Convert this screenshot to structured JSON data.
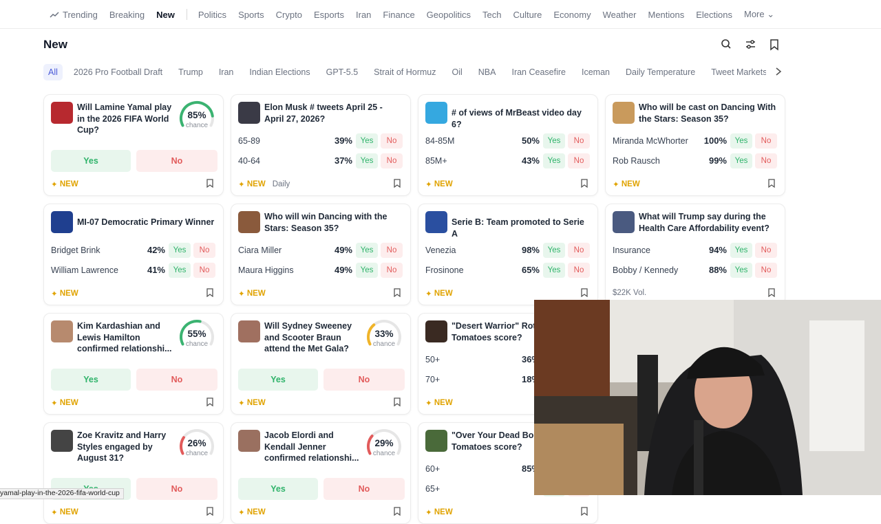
{
  "nav": {
    "items": [
      "Trending",
      "Breaking",
      "New",
      "Politics",
      "Sports",
      "Crypto",
      "Esports",
      "Iran",
      "Finance",
      "Geopolitics",
      "Tech",
      "Culture",
      "Economy",
      "Weather",
      "Mentions",
      "Elections",
      "More"
    ],
    "active": "New"
  },
  "header": {
    "title": "New"
  },
  "filters": [
    "All",
    "2026 Pro Football Draft",
    "Trump",
    "Iran",
    "Indian Elections",
    "GPT-5.5",
    "Strait of Hormuz",
    "Oil",
    "NBA",
    "Iran Ceasefire",
    "Iceman",
    "Daily Temperature",
    "Tweet Markets"
  ],
  "buttons": {
    "yes": "Yes",
    "no": "No",
    "chance": "chance",
    "new": "NEW"
  },
  "cards": [
    {
      "title": "Will Lamine Yamal play in the 2026 FIFA World Cup?",
      "chance": "85%",
      "gauge_color": "#3bb371",
      "icon_color": "#b7292f",
      "footer": {
        "new": true
      }
    },
    {
      "title": "Elon Musk # tweets April 25 - April 27, 2026?",
      "outcomes": [
        {
          "name": "65-89",
          "pct": "39%"
        },
        {
          "name": "40-64",
          "pct": "37%"
        }
      ],
      "icon_color": "#3a3a46",
      "footer": {
        "new": true,
        "extra": "Daily"
      }
    },
    {
      "title": "# of views of MrBeast video day 6?",
      "outcomes": [
        {
          "name": "84-85M",
          "pct": "50%"
        },
        {
          "name": "85M+",
          "pct": "43%"
        }
      ],
      "icon_color": "#35a8e0",
      "footer": {
        "new": true
      }
    },
    {
      "title": "Who will be cast on Dancing With the Stars: Season 35?",
      "outcomes": [
        {
          "name": "Miranda McWhorter",
          "pct": "100%"
        },
        {
          "name": "Rob Rausch",
          "pct": "99%"
        }
      ],
      "icon_color": "#c99a5c",
      "footer": {
        "new": true
      }
    },
    {
      "title": "MI-07 Democratic Primary Winner",
      "outcomes": [
        {
          "name": "Bridget Brink",
          "pct": "42%"
        },
        {
          "name": "William Lawrence",
          "pct": "41%"
        }
      ],
      "icon_color": "#1f3f8f",
      "footer": {
        "new": true
      }
    },
    {
      "title": "Who will win Dancing with the Stars: Season 35?",
      "outcomes": [
        {
          "name": "Ciara Miller",
          "pct": "49%"
        },
        {
          "name": "Maura Higgins",
          "pct": "49%"
        }
      ],
      "icon_color": "#8a5a3c",
      "footer": {
        "new": true
      }
    },
    {
      "title": "Serie B: Team promoted to Serie A",
      "outcomes": [
        {
          "name": "Venezia",
          "pct": "98%"
        },
        {
          "name": "Frosinone",
          "pct": "65%"
        }
      ],
      "icon_color": "#2a4fa0",
      "footer": {
        "new": true
      }
    },
    {
      "title": "What will Trump say during the Health Care Affordability event?",
      "outcomes": [
        {
          "name": "Insurance",
          "pct": "94%"
        },
        {
          "name": "Bobby / Kennedy",
          "pct": "88%"
        }
      ],
      "icon_color": "#4a5a80",
      "footer": {
        "vol": "$22K Vol."
      }
    },
    {
      "title": "Kim Kardashian and Lewis Hamilton confirmed relationshi...",
      "chance": "55%",
      "gauge_color": "#3bb371",
      "icon_color": "#b78a6e",
      "footer": {
        "new": true
      }
    },
    {
      "title": "Will Sydney Sweeney and Scooter Braun attend the Met Gala?",
      "chance": "33%",
      "gauge_color": "#f0b429",
      "icon_color": "#a07060",
      "footer": {
        "new": true
      }
    },
    {
      "title": "\"Desert Warrior\" Rotten Tomatoes score?",
      "outcomes": [
        {
          "name": "50+",
          "pct": "36%"
        },
        {
          "name": "70+",
          "pct": "18%"
        }
      ],
      "icon_color": "#3a2a22",
      "footer": {
        "new": true
      }
    },
    {
      "title": "Zoe Kravitz and Harry Styles engaged by August 31?",
      "chance": "26%",
      "gauge_color": "#e25b5b",
      "icon_color": "#444",
      "footer": {
        "new": true
      }
    },
    {
      "title": "Jacob Elordi and Kendall Jenner confirmed relationshi...",
      "chance": "29%",
      "gauge_color": "#e25b5b",
      "icon_color": "#9a7060",
      "footer": {
        "new": true
      }
    },
    {
      "title": "\"Over Your Dead Body\" Rotten Tomatoes score?",
      "outcomes": [
        {
          "name": "60+",
          "pct": "85%"
        },
        {
          "name": "65+"
        }
      ],
      "icon_color": "#4a6a3a",
      "footer": {
        "new": true
      }
    }
  ],
  "status_url": "yamal-play-in-the-2026-fifa-world-cup"
}
